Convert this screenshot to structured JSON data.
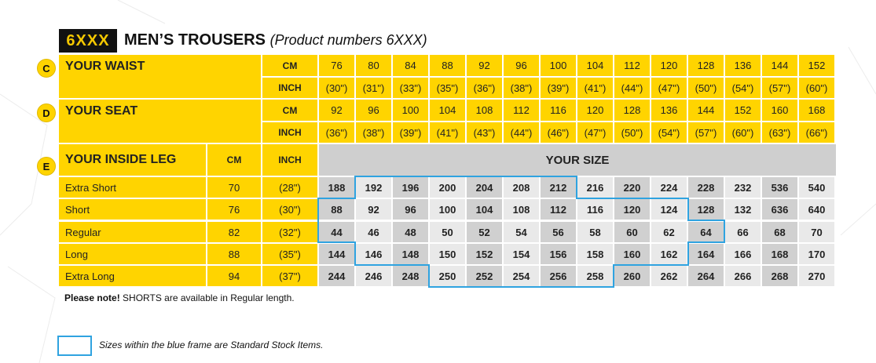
{
  "title": {
    "code": "6XXX",
    "main": "MEN’S TROUSERS",
    "sub": "(Product numbers 6XXX)"
  },
  "sections": {
    "waist": {
      "letter": "C",
      "label": "YOUR WAIST"
    },
    "seat": {
      "letter": "D",
      "label": "YOUR SEAT"
    },
    "inside_leg": {
      "letter": "E",
      "label": "YOUR INSIDE LEG"
    }
  },
  "units": {
    "cm": "CM",
    "inch": "INCH"
  },
  "waist_cm": [
    "76",
    "80",
    "84",
    "88",
    "92",
    "96",
    "100",
    "104",
    "112",
    "120",
    "128",
    "136",
    "144",
    "152"
  ],
  "waist_inch": [
    "(30\")",
    "(31\")",
    "(33\")",
    "(35\")",
    "(36\")",
    "(38\")",
    "(39\")",
    "(41\")",
    "(44\")",
    "(47\")",
    "(50\")",
    "(54\")",
    "(57\")",
    "(60\")"
  ],
  "seat_cm": [
    "92",
    "96",
    "100",
    "104",
    "108",
    "112",
    "116",
    "120",
    "128",
    "136",
    "144",
    "152",
    "160",
    "168"
  ],
  "seat_inch": [
    "(36\")",
    "(38\")",
    "(39\")",
    "(41\")",
    "(43\")",
    "(44\")",
    "(46\")",
    "(47\")",
    "(50\")",
    "(54\")",
    "(57\")",
    "(60\")",
    "(63\")",
    "(66\")"
  ],
  "your_size": "YOUR SIZE",
  "leg_rows": [
    {
      "name": "Extra Short",
      "cm": "70",
      "inch": "(28\")",
      "sizes": [
        "188",
        "192",
        "196",
        "200",
        "204",
        "208",
        "212",
        "216",
        "220",
        "224",
        "228",
        "232",
        "536",
        "540"
      ]
    },
    {
      "name": "Short",
      "cm": "76",
      "inch": "(30\")",
      "sizes": [
        "88",
        "92",
        "96",
        "100",
        "104",
        "108",
        "112",
        "116",
        "120",
        "124",
        "128",
        "132",
        "636",
        "640"
      ]
    },
    {
      "name": "Regular",
      "cm": "82",
      "inch": "(32\")",
      "sizes": [
        "44",
        "46",
        "48",
        "50",
        "52",
        "54",
        "56",
        "58",
        "60",
        "62",
        "64",
        "66",
        "68",
        "70"
      ]
    },
    {
      "name": "Long",
      "cm": "88",
      "inch": "(35\")",
      "sizes": [
        "144",
        "146",
        "148",
        "150",
        "152",
        "154",
        "156",
        "158",
        "160",
        "162",
        "164",
        "166",
        "168",
        "170"
      ]
    },
    {
      "name": "Extra Long",
      "cm": "94",
      "inch": "(37\")",
      "sizes": [
        "244",
        "246",
        "248",
        "250",
        "252",
        "254",
        "256",
        "258",
        "260",
        "262",
        "264",
        "266",
        "268",
        "270"
      ]
    }
  ],
  "note": {
    "bold": "Please note!",
    "text": "SHORTS are available in Regular length."
  },
  "legend": {
    "text": "Sizes within the blue frame are Standard Stock Items."
  },
  "colors": {
    "yellow": "#ffd400",
    "gray_dark": "#d0d0d0",
    "gray_light": "#e9e9e9",
    "frame_blue": "#2fa3e0",
    "code_bg": "#111111"
  }
}
